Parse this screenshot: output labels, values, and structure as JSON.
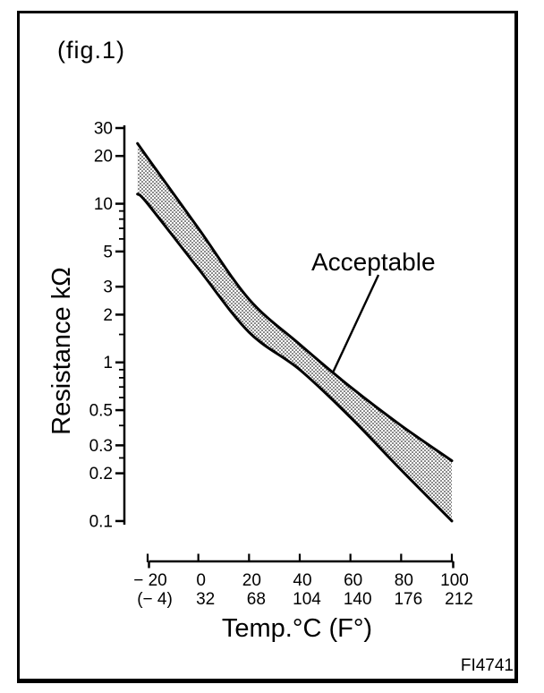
{
  "figure": {
    "label": "(fig.1)",
    "code": "FI4741"
  },
  "chart_data": {
    "type": "area",
    "title": "",
    "xlabel": "Temp.°C (F°)",
    "ylabel": "Resistance kΩ",
    "x_scale": "linear",
    "y_scale": "log",
    "x_range": [
      -20,
      100
    ],
    "y_range": [
      0.1,
      30
    ],
    "grid": false,
    "legend": "none",
    "x": [
      -24,
      -20,
      0,
      20,
      40,
      60,
      80,
      100
    ],
    "series": [
      {
        "name": "upper acceptable limit (kΩ)",
        "values": [
          24,
          19.5,
          7.0,
          2.5,
          1.3,
          0.7,
          0.4,
          0.24
        ]
      },
      {
        "name": "lower acceptable limit (kΩ)",
        "values": [
          11.5,
          10,
          3.9,
          1.55,
          0.9,
          0.45,
          0.21,
          0.1
        ]
      }
    ],
    "x_axis": {
      "ticks_c_values": [
        -20,
        0,
        20,
        40,
        60,
        80,
        100
      ],
      "ticks_c_labels": [
        "− 20",
        "0",
        "20",
        "40",
        "60",
        "80",
        "100"
      ],
      "ticks_f_labels": [
        "(− 4)",
        "32",
        "68",
        "104",
        "140",
        "176",
        "212"
      ]
    },
    "y_axis": {
      "major_values": [
        30,
        20,
        10,
        5,
        3,
        2,
        1,
        0.5,
        0.3,
        0.2,
        0.1
      ],
      "major_labels": [
        "30",
        "20",
        "10",
        "5",
        "3",
        "2",
        "1",
        "0.5",
        "0.3",
        "0.2",
        "0.1"
      ],
      "minor_values": [
        9,
        8,
        7,
        6,
        1.5,
        0.9,
        0.8,
        0.7,
        0.6,
        0.4,
        0.25
      ]
    },
    "annotation": {
      "text": "Acceptable",
      "target_temp_c": 53
    }
  },
  "colors": {
    "ink": "#000000",
    "paper": "#ffffff"
  }
}
